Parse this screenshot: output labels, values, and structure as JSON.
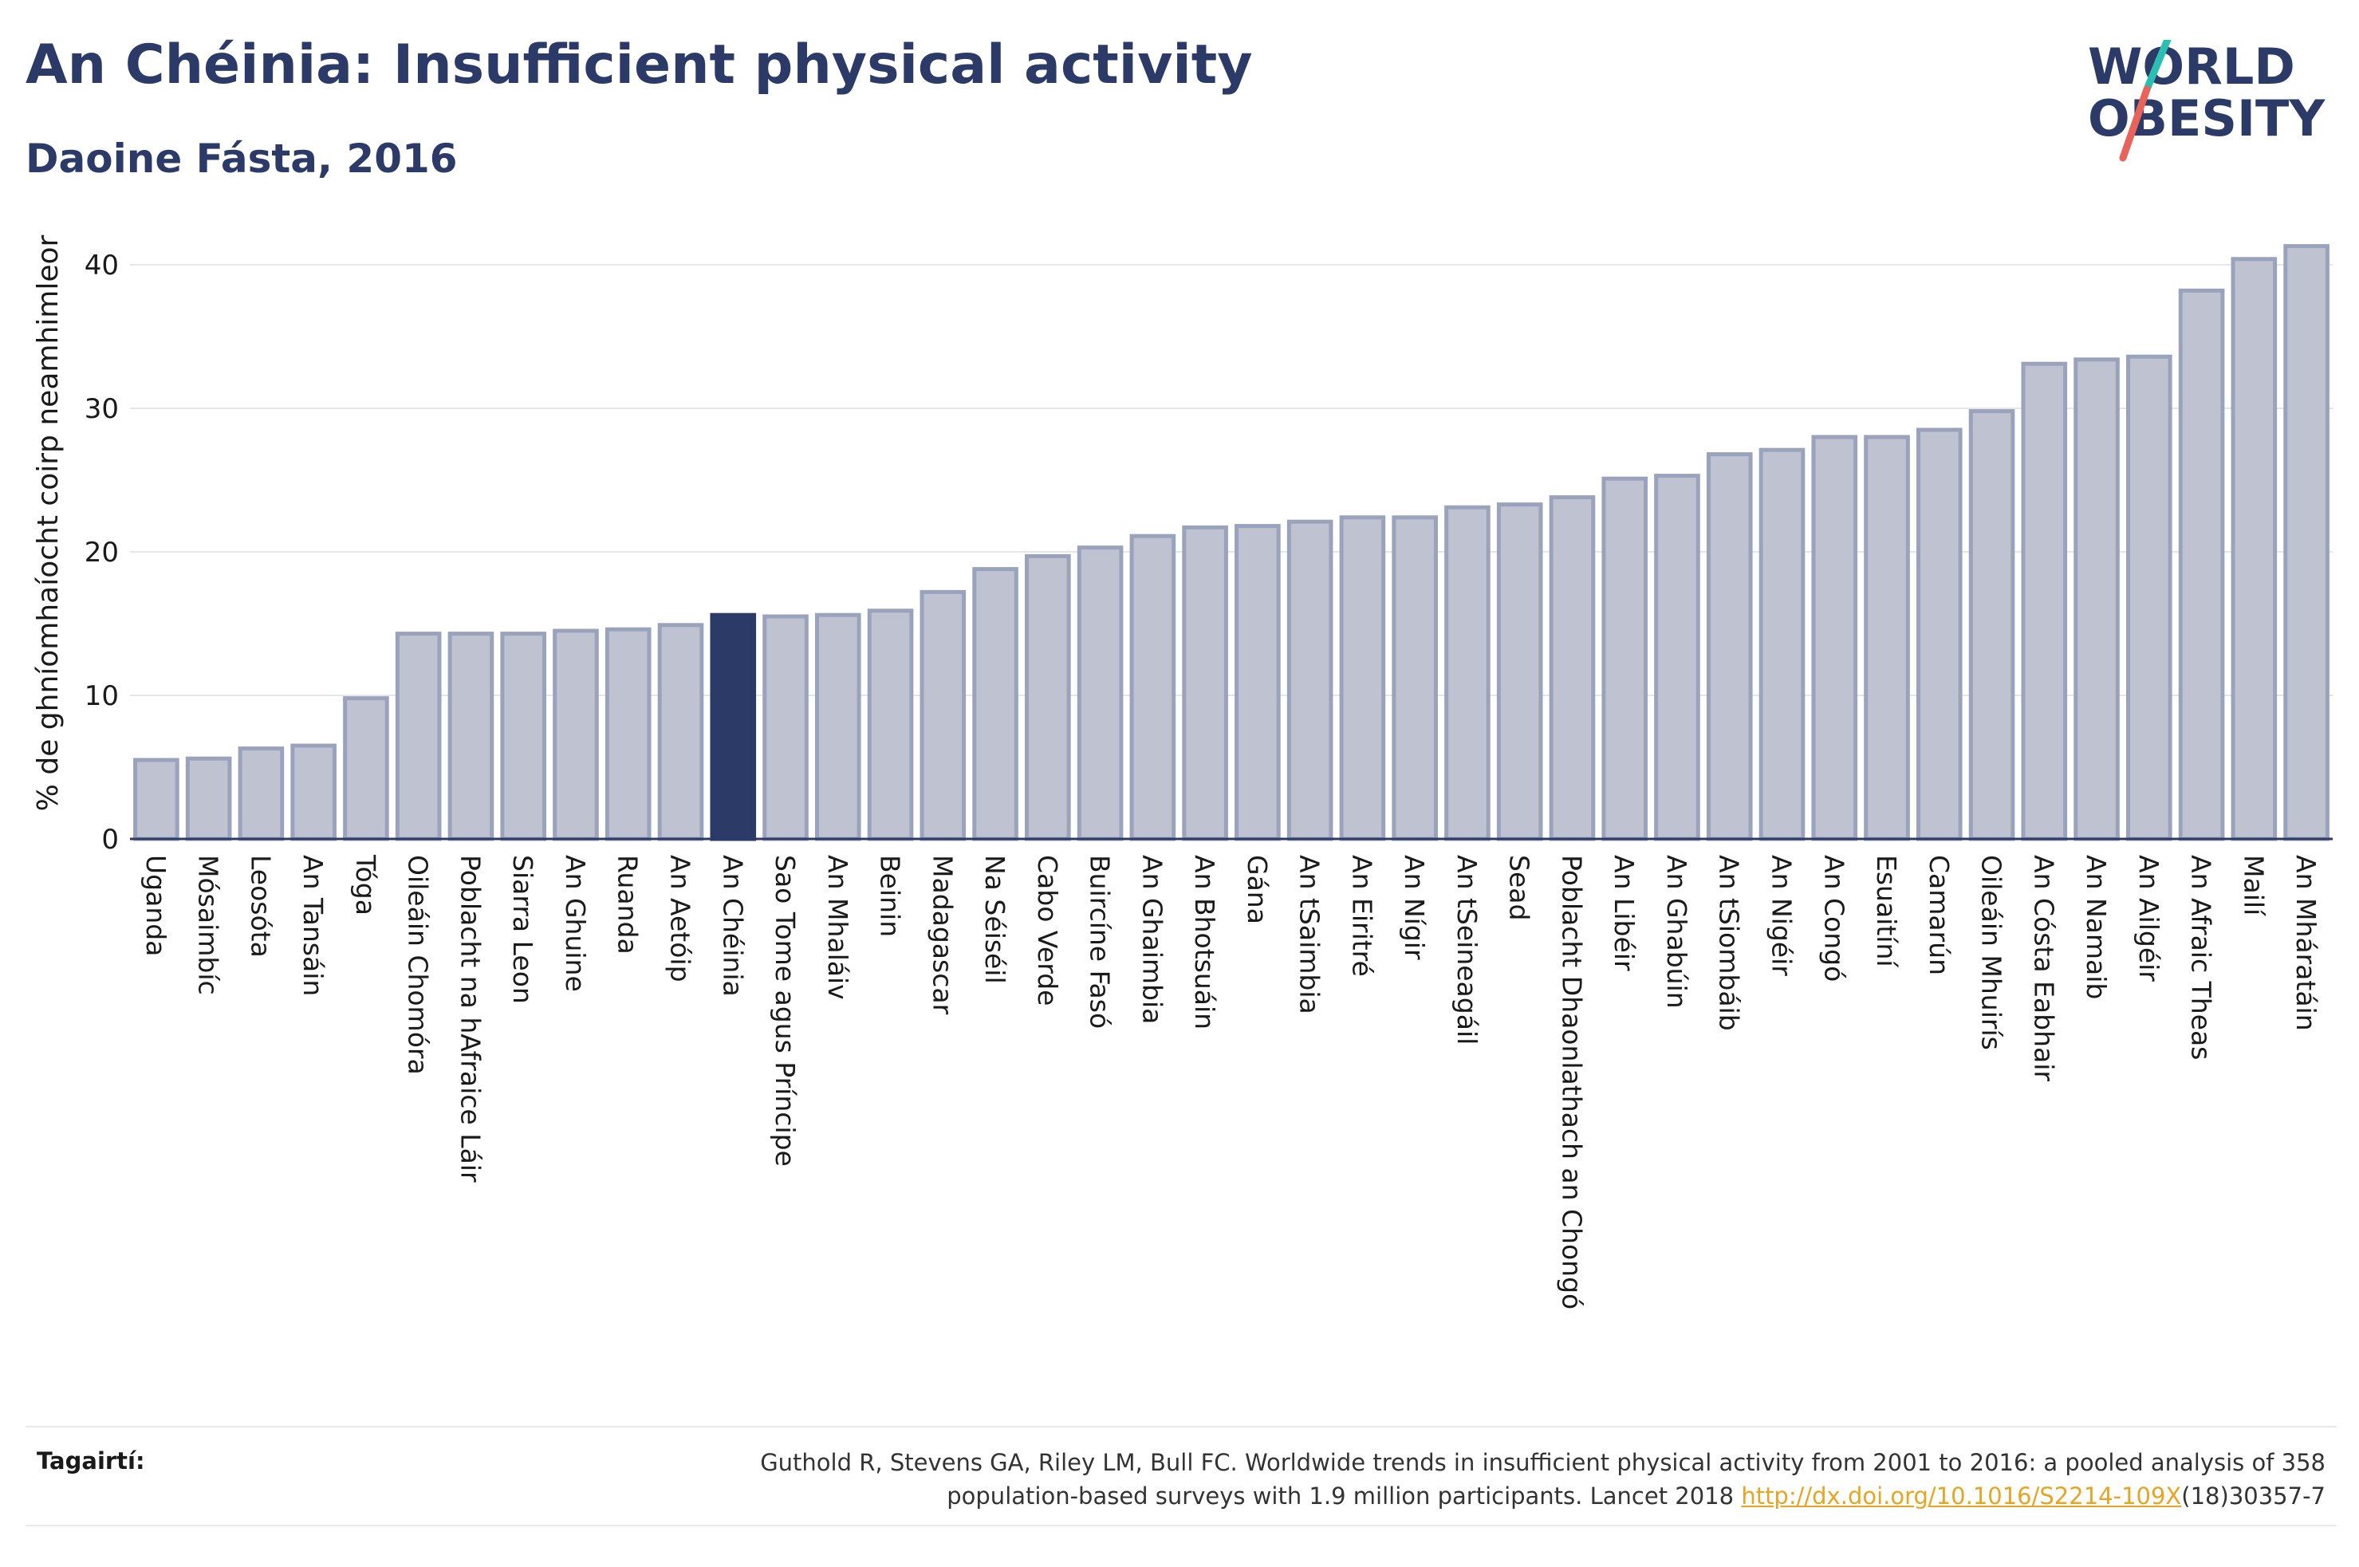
{
  "header": {
    "title": "An Chéinia: Insufficient physical activity",
    "subtitle": "Daoine Fásta, 2016"
  },
  "logo": {
    "line1": "WORLD",
    "line2": "OBESITY",
    "slash_colors": [
      "#2bbfb3",
      "#e8645a"
    ]
  },
  "colors": {
    "bar": "#bfc3d1",
    "bar_stroke": "#9ba2bb",
    "highlight": "#2b3a67",
    "axis": "#2b3a67",
    "grid": "#e6e6ea"
  },
  "chart_data": {
    "type": "bar",
    "ylabel": "% de ghníomhaíocht coirp neamhimleor",
    "xlabel": "",
    "ylim": [
      0,
      44
    ],
    "yticks": [
      0,
      10,
      20,
      30,
      40
    ],
    "grid": true,
    "highlight": "An Chéinia",
    "categories": [
      "Uganda",
      "Mósaimbíc",
      "Leosóta",
      "An Tansáin",
      "Tóga",
      "Oileáin Chomóra",
      "Poblacht na hAfraice Láir",
      "Siarra Leon",
      "An Ghuine",
      "Ruanda",
      "An Aetóip",
      "An Chéinia",
      "Sao Tome agus Príncipe",
      "An Mhaláiv",
      "Beinin",
      "Madagascar",
      "Na Séiséil",
      "Cabo Verde",
      "Buircíne Fasó",
      "An Ghaimbia",
      "An Bhotsuáin",
      "Gána",
      "An tSaimbia",
      "An Eiritré",
      "An Nígir",
      "An tSeineagáil",
      "Sead",
      "Poblacht Dhaonlathach an Chongó",
      "An Libéir",
      "An Ghabúin",
      "An tSiombáib",
      "An Nigéir",
      "An Congó",
      "Esuaitíní",
      "Camarún",
      "Oileáin Mhuirís",
      "An Cósta Eabhair",
      "An Namaib",
      "An Ailgéir",
      "An Afraic Theas",
      "Mailí",
      "An Mháratáin"
    ],
    "values": [
      5.5,
      5.6,
      6.3,
      6.5,
      9.8,
      14.3,
      14.3,
      14.3,
      14.5,
      14.6,
      14.9,
      15.6,
      15.5,
      15.6,
      15.9,
      17.2,
      18.8,
      19.7,
      20.3,
      21.1,
      21.7,
      21.8,
      22.1,
      22.4,
      22.4,
      23.1,
      23.3,
      23.8,
      25.1,
      25.3,
      26.8,
      27.1,
      28.0,
      28.0,
      28.5,
      29.8,
      33.1,
      33.4,
      33.6,
      38.2,
      40.4,
      41.3
    ]
  },
  "footer": {
    "ref_label": "Tagairtí:",
    "ref_line1": "Guthold R, Stevens GA, Riley LM, Bull FC. Worldwide trends in insufficient physical activity from 2001 to 2016: a pooled analysis of 358",
    "ref_line2_pre": "population-based surveys with 1.9 million participants. Lancet 2018 ",
    "ref_link": "http://dx.doi.org/10.1016/S2214-109X",
    "ref_line2_post": "(18)30357-7"
  }
}
